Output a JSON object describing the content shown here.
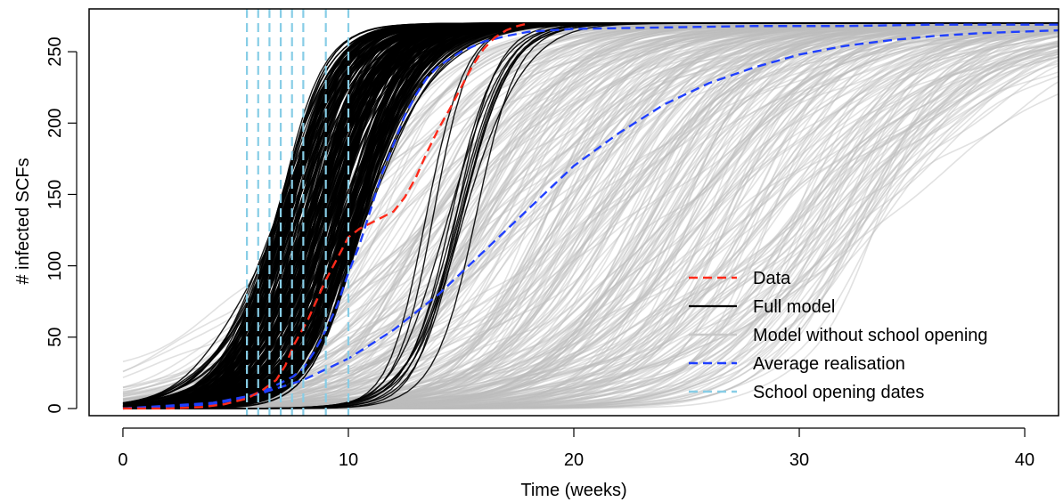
{
  "chart_data": {
    "type": "line",
    "xlabel": "Time (weeks)",
    "ylabel": "# infected SCFs",
    "xlim": [
      -1.5,
      41.5
    ],
    "ylim": [
      -5,
      280
    ],
    "x_ticks": [
      0,
      10,
      20,
      30,
      40
    ],
    "y_ticks": [
      0,
      50,
      100,
      150,
      200,
      250
    ],
    "x_tick_labels": [
      "0",
      "10",
      "20",
      "30",
      "40"
    ],
    "y_tick_labels": [
      "0",
      "50",
      "100",
      "150",
      "200",
      "250"
    ],
    "legend_position": "bottom-right",
    "grid": false,
    "series": [
      {
        "name": "Data",
        "style": "dashed",
        "color": "#ff2a1a",
        "x": [
          0,
          2,
          3.5,
          4.5,
          5.5,
          6.2,
          6.8,
          7.2,
          7.6,
          8.2,
          9,
          9.5,
          10,
          10.5,
          11,
          11.5,
          12,
          12.5,
          13,
          13.5,
          14,
          14.5,
          15,
          15.5,
          16,
          16.5,
          17,
          17.5,
          18
        ],
        "y": [
          0,
          0,
          1,
          3,
          7,
          13,
          20,
          30,
          45,
          62,
          90,
          105,
          120,
          126,
          130,
          134,
          138,
          148,
          162,
          180,
          196,
          210,
          225,
          240,
          252,
          260,
          265,
          268,
          270
        ]
      },
      {
        "name": "Full model",
        "style": "solid",
        "color": "#000000",
        "note": "ensemble of realisations (black band)"
      },
      {
        "name": "Model without school opening",
        "style": "solid",
        "color": "#c8c8c8",
        "note": "ensemble of realisations (grey band)"
      },
      {
        "name": "Average realisation",
        "style": "dashed",
        "color": "#1f3fff",
        "note": "two curves: full model and model without school opening",
        "curves": [
          {
            "x": [
              0,
              4,
              5.5,
              6.5,
              7,
              7.5,
              8,
              8.5,
              9,
              9.5,
              10,
              10.5,
              11,
              11.5,
              12,
              12.5,
              13,
              13.5,
              14,
              15,
              16,
              17,
              18,
              20,
              24,
              28,
              32,
              36,
              41.5
            ],
            "y": [
              0,
              3,
              8,
              14,
              18,
              22,
              28,
              40,
              55,
              72,
              95,
              115,
              140,
              165,
              185,
              205,
              220,
              232,
              240,
              250,
              257,
              261,
              264,
              266,
              267,
              268,
              268,
              269,
              269
            ]
          },
          {
            "x": [
              0,
              2,
              4,
              6,
              8,
              10,
              12,
              14,
              16,
              18,
              20,
              22,
              24,
              26,
              28,
              30,
              32,
              34,
              36,
              38,
              41.5
            ],
            "y": [
              0,
              2,
              4,
              10,
              20,
              35,
              55,
              80,
              110,
              140,
              170,
              193,
              213,
              228,
              239,
              248,
              254,
              258,
              261,
              263,
              265
            ]
          }
        ]
      },
      {
        "name": "School opening dates",
        "style": "dashed",
        "color": "#87cde6",
        "x": [
          5.5,
          6,
          6.5,
          7,
          7.5,
          8,
          9,
          10
        ]
      }
    ],
    "ensemble": {
      "full_model": {
        "count": 260,
        "t0_min": 6.8,
        "t0_max": 10.8,
        "k_min": 0.55,
        "k_max": 1.0,
        "lag_fraction": 0.1,
        "lag_t0_min": 13.5,
        "lag_t0_max": 16
      },
      "without_school": {
        "count": 320,
        "t0_min": 9,
        "t0_max": 34,
        "k_min": 0.2,
        "k_max": 0.55
      }
    },
    "ymax_population": 270
  }
}
